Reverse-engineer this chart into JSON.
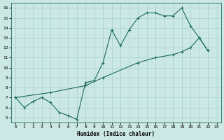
{
  "xlabel": "Humidex (Indice chaleur)",
  "bg_color": "#cce8e4",
  "grid_color": "#aad4d0",
  "line_color": "#1a6b5a",
  "xlim": [
    -0.5,
    23.5
  ],
  "ylim": [
    4.5,
    16.5
  ],
  "xticks": [
    0,
    1,
    2,
    3,
    4,
    5,
    6,
    7,
    8,
    9,
    10,
    11,
    12,
    13,
    14,
    15,
    16,
    17,
    18,
    19,
    20,
    21,
    22,
    23
  ],
  "yticks": [
    5,
    6,
    7,
    8,
    9,
    10,
    11,
    12,
    13,
    14,
    15,
    16
  ],
  "line1_x": [
    0,
    1,
    2,
    3,
    4,
    5,
    6,
    7,
    8,
    9,
    10,
    11,
    12,
    13,
    14,
    15,
    16,
    17,
    18,
    19,
    20,
    21,
    22
  ],
  "line1_y": [
    7.0,
    6.0,
    6.6,
    7.0,
    6.5,
    5.5,
    5.2,
    4.8,
    8.5,
    8.7,
    10.5,
    13.8,
    12.2,
    13.8,
    15.0,
    15.5,
    15.5,
    15.2,
    15.2,
    16.0,
    14.2,
    13.0,
    11.7
  ],
  "line2_x": [
    0,
    4,
    8,
    10,
    14,
    16,
    18,
    19,
    20,
    21,
    22
  ],
  "line2_y": [
    7.0,
    7.5,
    8.2,
    9.0,
    10.5,
    11.0,
    11.3,
    11.6,
    12.0,
    13.0,
    11.7
  ]
}
